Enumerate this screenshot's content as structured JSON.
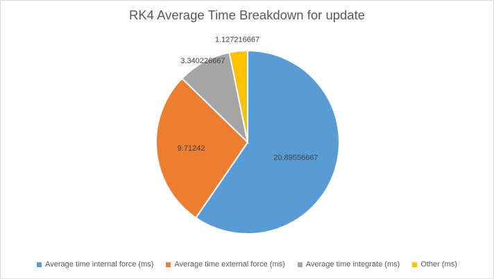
{
  "chart_data": {
    "type": "pie",
    "title": "RK4 Average Time Breakdown for update",
    "categories": [
      "Average time internal force (ms)",
      "Average time external force (ms)",
      "Average time integrate (ms)",
      "Other (ms)"
    ],
    "values": [
      20.89556667,
      9.71242,
      3.340226667,
      1.127216667
    ],
    "value_labels": [
      "20.89556667",
      "9.71242",
      "3.340226667",
      "1.127216667"
    ],
    "colors": [
      "#5b9bd5",
      "#ed7d31",
      "#a5a5a5",
      "#ffc000"
    ],
    "legend_position": "bottom",
    "start_angle": "12 o'clock, clockwise"
  }
}
